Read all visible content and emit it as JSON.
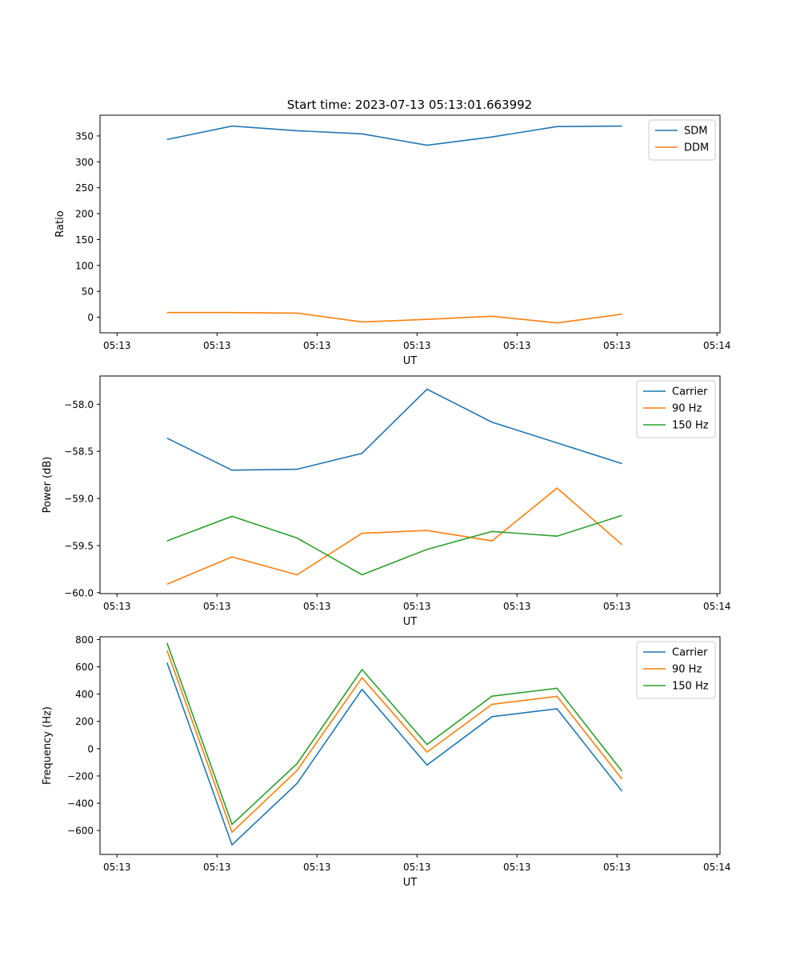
{
  "figure_title": "Start time: 2023-07-13 05:13:01.663992",
  "colors": {
    "c1": "#1f77b4",
    "c2": "#ff7f0e",
    "c3": "#2ca02c"
  },
  "chart_data": [
    {
      "type": "line",
      "title": "Start time: 2023-07-13 05:13:01.663992",
      "xlabel": "UT",
      "ylabel": "Ratio",
      "x_ticks": [
        "05:13",
        "05:13",
        "05:13",
        "05:13",
        "05:13",
        "05:13",
        "05:14"
      ],
      "x_tick_positions": [
        0,
        1,
        2,
        3,
        4,
        5,
        6
      ],
      "xlim": [
        -0.17,
        6.03
      ],
      "x": [
        0.5,
        1.15,
        1.8,
        2.45,
        3.1,
        3.75,
        4.4,
        5.05
      ],
      "ylim": [
        -30,
        390
      ],
      "y_ticks": [
        0,
        50,
        100,
        150,
        200,
        250,
        300,
        350
      ],
      "grid": false,
      "legend": "top-right",
      "series": [
        {
          "name": "SDM",
          "color": "#1f77b4",
          "values": [
            343,
            369,
            360,
            354,
            332,
            348,
            368,
            369
          ]
        },
        {
          "name": "DDM",
          "color": "#ff7f0e",
          "values": [
            9,
            9,
            8,
            -9,
            -4,
            2,
            -11,
            6
          ]
        }
      ]
    },
    {
      "type": "line",
      "title": "",
      "xlabel": "UT",
      "ylabel": "Power (dB)",
      "x_ticks": [
        "05:13",
        "05:13",
        "05:13",
        "05:13",
        "05:13",
        "05:13",
        "05:14"
      ],
      "x_tick_positions": [
        0,
        1,
        2,
        3,
        4,
        5,
        6
      ],
      "xlim": [
        -0.17,
        6.03
      ],
      "x": [
        0.5,
        1.15,
        1.8,
        2.45,
        3.1,
        3.75,
        4.4,
        5.05
      ],
      "ylim": [
        -60.01,
        -57.7
      ],
      "y_ticks": [
        -60.0,
        -59.5,
        -59.0,
        -58.5,
        -58.0
      ],
      "y_tick_labels": [
        "−60.0",
        "−59.5",
        "−59.0",
        "−58.5",
        "−58.0"
      ],
      "grid": false,
      "legend": "top-right",
      "series": [
        {
          "name": "Carrier",
          "color": "#1f77b4",
          "values": [
            -58.36,
            -58.7,
            -58.69,
            -58.52,
            -57.84,
            -58.19,
            -58.41,
            -58.63
          ]
        },
        {
          "name": "90 Hz",
          "color": "#ff7f0e",
          "values": [
            -59.91,
            -59.62,
            -59.81,
            -59.37,
            -59.34,
            -59.45,
            -58.89,
            -59.49
          ]
        },
        {
          "name": "150 Hz",
          "color": "#2ca02c",
          "values": [
            -59.45,
            -59.19,
            -59.42,
            -59.81,
            -59.54,
            -59.35,
            -59.4,
            -59.18
          ]
        }
      ]
    },
    {
      "type": "line",
      "title": "",
      "xlabel": "UT",
      "ylabel": "Frequency (Hz)",
      "x_ticks": [
        "05:13",
        "05:13",
        "05:13",
        "05:13",
        "05:13",
        "05:13",
        "05:14"
      ],
      "x_tick_positions": [
        0,
        1,
        2,
        3,
        4,
        5,
        6
      ],
      "xlim": [
        -0.17,
        6.03
      ],
      "x": [
        0.5,
        1.15,
        1.8,
        2.45,
        3.1,
        3.75,
        4.4,
        5.05
      ],
      "ylim": [
        -775,
        820
      ],
      "y_ticks": [
        -600,
        -400,
        -200,
        0,
        200,
        400,
        600,
        800
      ],
      "y_tick_labels": [
        "−600",
        "−400",
        "−200",
        "0",
        "200",
        "400",
        "600",
        "800"
      ],
      "grid": false,
      "legend": "top-right",
      "series": [
        {
          "name": "Carrier",
          "color": "#1f77b4",
          "values": [
            630,
            -705,
            -255,
            435,
            -120,
            235,
            292,
            -312
          ]
        },
        {
          "name": "90 Hz",
          "color": "#ff7f0e",
          "values": [
            720,
            -612,
            -160,
            520,
            -25,
            325,
            383,
            -223
          ]
        },
        {
          "name": "150 Hz",
          "color": "#2ca02c",
          "values": [
            775,
            -555,
            -110,
            580,
            30,
            385,
            443,
            -165
          ]
        }
      ]
    }
  ]
}
